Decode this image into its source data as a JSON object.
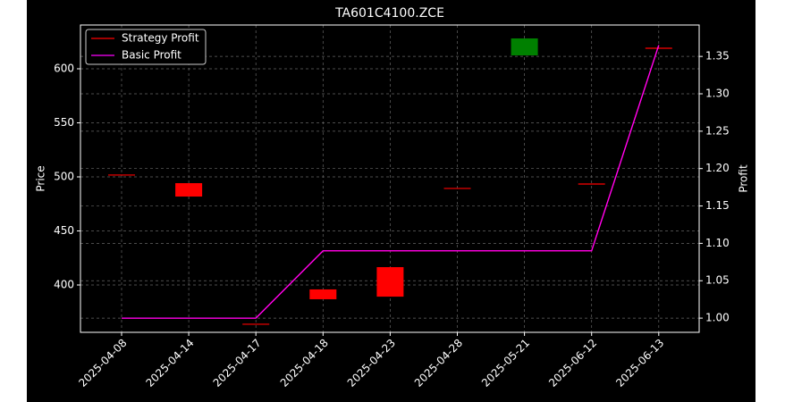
{
  "chart_data": {
    "type": "candlestick",
    "title": "TA601C4100.ZCE",
    "categories": [
      "2025-04-08",
      "2025-04-14",
      "2025-04-17",
      "2025-04-18",
      "2025-04-23",
      "2025-04-28",
      "2025-05-21",
      "2025-06-12",
      "2025-06-13"
    ],
    "open": [
      501.7,
      494.2,
      363.7,
      395.9,
      416.5,
      489.3,
      612.4,
      493.4,
      619.0
    ],
    "close": [
      501.7,
      481.8,
      363.7,
      386.8,
      389.2,
      489.3,
      628.1,
      493.4,
      619.0
    ],
    "up_color": "#008000",
    "down_color": "#ff0000",
    "ylabel": "Price",
    "y2label": "Profit",
    "ylim": [
      356.2,
      640.5
    ],
    "yticks": [
      400,
      450,
      500,
      550,
      600
    ],
    "y2lim": [
      0.981,
      1.392
    ],
    "y2ticks": [
      {
        "value": 1.0,
        "label": "1.00"
      },
      {
        "value": 1.05,
        "label": "1.05"
      },
      {
        "value": 1.1,
        "label": "1.10"
      },
      {
        "value": 1.15,
        "label": "1.15"
      },
      {
        "value": 1.2,
        "label": "1.20"
      },
      {
        "value": 1.25,
        "label": "1.25"
      },
      {
        "value": 1.3,
        "label": "1.30"
      },
      {
        "value": 1.35,
        "label": "1.35"
      }
    ],
    "series": [
      {
        "name": "Strategy Profit",
        "color": "#ff0000",
        "axis": "y2",
        "values": [
          1.0,
          1.0,
          1.0,
          1.09,
          1.09,
          1.09,
          1.09,
          1.09,
          1.365
        ]
      },
      {
        "name": "Basic Profit",
        "color": "#ff00ff",
        "axis": "y2",
        "values": [
          1.0,
          1.0,
          1.0,
          1.09,
          1.09,
          1.09,
          1.09,
          1.09,
          1.365
        ]
      }
    ],
    "grid": true,
    "legend": "upper left"
  }
}
